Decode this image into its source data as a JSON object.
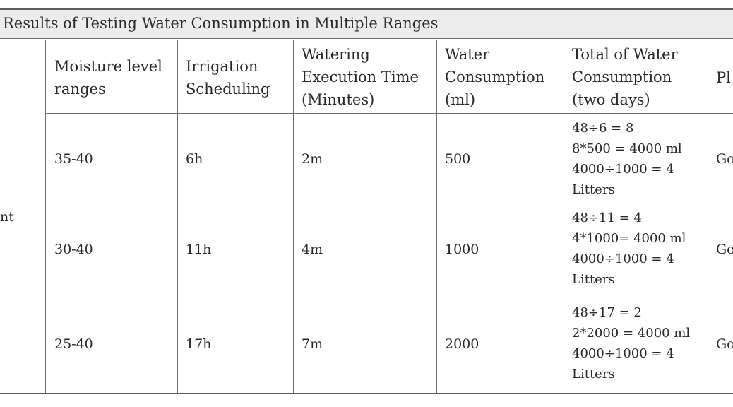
{
  "caption": "Results of Testing Water Consumption in Multiple Ranges",
  "row_group_fragment": "nt",
  "headers": [
    {
      "lines": [
        "Moisture level",
        "ranges"
      ]
    },
    {
      "lines": [
        "Irrigation",
        "Scheduling"
      ]
    },
    {
      "lines": [
        "Watering",
        "Execution Time",
        "(Minutes)"
      ]
    },
    {
      "lines": [
        "Water",
        "Consumption",
        "(ml)"
      ]
    },
    {
      "lines": [
        "Total of Water",
        "Consumption",
        "(two days)"
      ]
    },
    {
      "lines": [
        "Pl"
      ]
    }
  ],
  "rows": [
    {
      "moisture": "35-40",
      "schedule": "6h",
      "time": "2m",
      "consumption": "500",
      "total": [
        "48÷6 = 8",
        "8*500 = 4000 ml",
        "4000÷1000 = 4",
        "Litters"
      ],
      "plant": "Go"
    },
    {
      "moisture": "30-40",
      "schedule": "11h",
      "time": "4m",
      "consumption": "1000",
      "total": [
        "48÷11 = 4",
        "4*1000= 4000 ml",
        "4000÷1000 = 4",
        "Litters"
      ],
      "plant": "Go"
    },
    {
      "moisture": "25-40",
      "schedule": "17h",
      "time": "7m",
      "consumption": "2000",
      "total": [
        "48÷17 = 2",
        "2*2000 = 4000 ml",
        "4000÷1000 = 4",
        "Litters"
      ],
      "plant": "Go"
    }
  ]
}
